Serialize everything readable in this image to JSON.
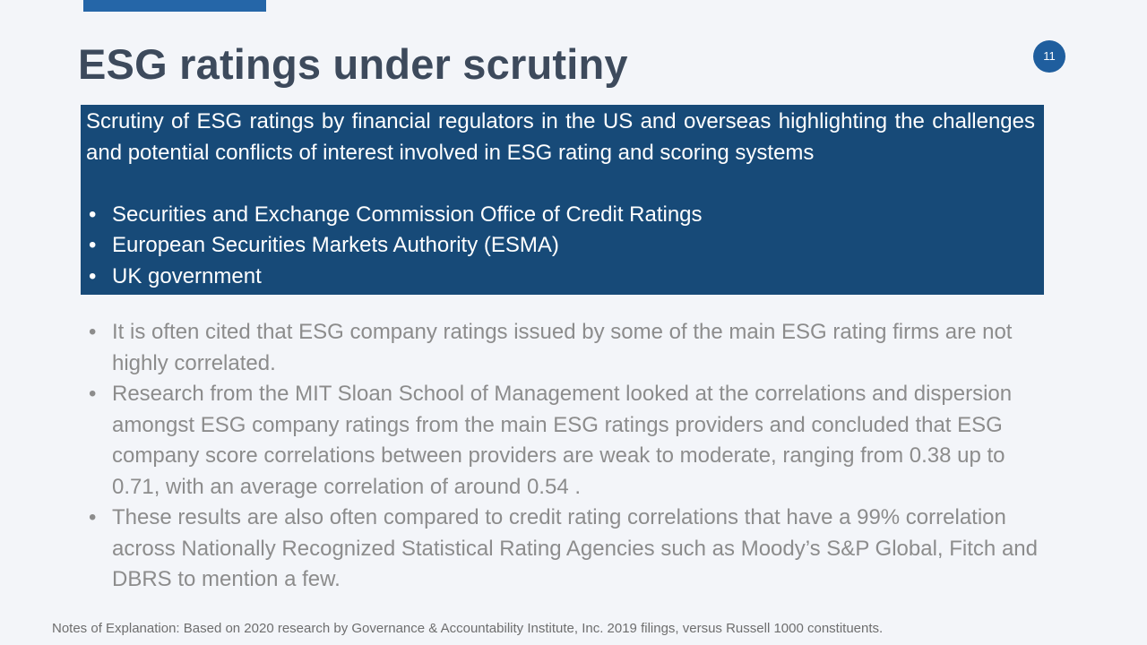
{
  "slide": {
    "title": "ESG ratings under scrutiny",
    "page_number": "11"
  },
  "highlight": {
    "intro": "Scrutiny of ESG ratings by financial regulators in the US and overseas highlighting the challenges and potential conflicts of interest involved in ESG rating and scoring systems",
    "items": [
      "Securities and Exchange Commission Office of Credit Ratings",
      "European Securities Markets Authority (ESMA)",
      "UK government"
    ]
  },
  "body": {
    "bullets": [
      "It is often cited that ESG company ratings issued by some of the main ESG rating firms are not highly correlated.",
      "Research from the MIT Sloan School of Management looked at the correlations and dispersion amongst ESG company ratings from the main ESG ratings providers and concluded that ESG company score correlations between providers are weak to moderate, ranging from 0.38 up to 0.71, with an average correlation of around 0.54 .",
      "These results are also often compared to credit rating correlations that have a 99% correlation across Nationally Recognized Statistical Rating Agencies such as Moody’s S&P Global, Fitch and DBRS to mention a few."
    ]
  },
  "footnote": {
    "text": "Notes of Explanation:  Based on 2020 research by Governance & Accountability Institute, Inc. 2019 filings, versus Russell 1000 constituents."
  },
  "colors": {
    "accent": "#2566a8",
    "highlight_bg": "#174a78",
    "title": "#3d4a5c",
    "body_text": "#8c8c8c"
  }
}
